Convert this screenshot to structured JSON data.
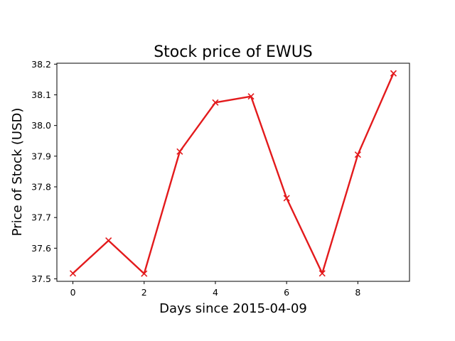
{
  "chart_data": {
    "type": "line",
    "title": "Stock price of EWUS",
    "xlabel": "Days since 2015-04-09",
    "ylabel": "Price of Stock (USD)",
    "xlim": [
      -0.45,
      9.45
    ],
    "ylim": [
      37.492,
      38.203
    ],
    "xticks": [
      0,
      2,
      4,
      6,
      8
    ],
    "yticks": [
      37.5,
      37.6,
      37.7,
      37.8,
      37.9,
      38.0,
      38.1,
      38.2
    ],
    "xtick_labels": [
      "0",
      "2",
      "4",
      "6",
      "8"
    ],
    "ytick_labels": [
      "37.5",
      "37.6",
      "37.7",
      "37.8",
      "37.9",
      "38.0",
      "38.1",
      "38.2"
    ],
    "grid": false,
    "legend": "none",
    "series": [
      {
        "color": "#e31a1c",
        "marker": "x",
        "x": [
          0,
          1,
          2,
          3,
          4,
          5,
          6,
          7,
          8,
          9
        ],
        "y": [
          37.518,
          37.625,
          37.517,
          37.915,
          38.075,
          38.095,
          37.763,
          37.518,
          37.905,
          38.17
        ]
      }
    ]
  }
}
